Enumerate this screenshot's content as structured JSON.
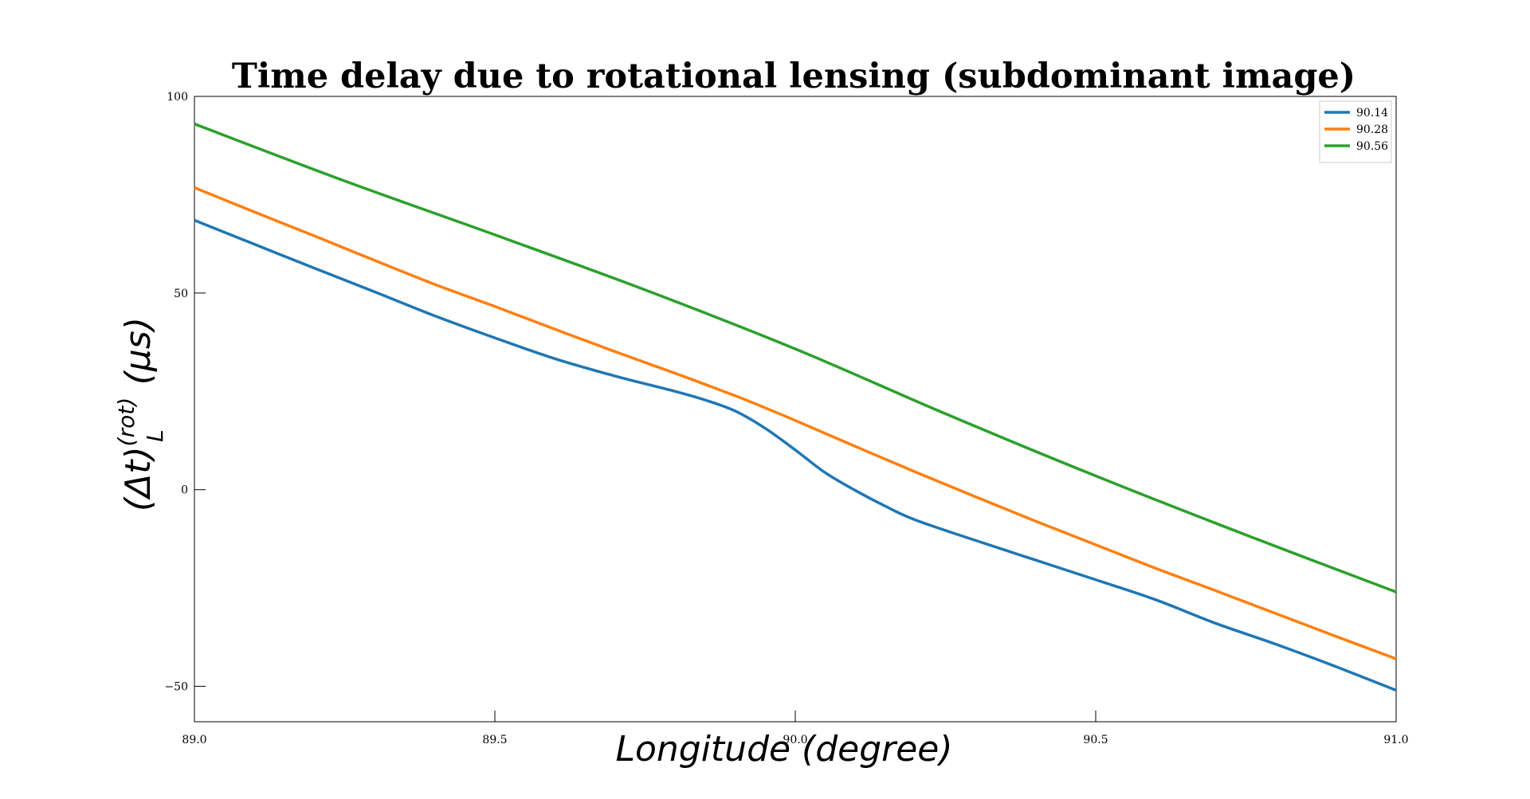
{
  "chart_data": {
    "type": "line",
    "title": "Time delay due to rotational lensing (subdominant image)",
    "xlabel": "Longitude   (degree)",
    "ylabel_main": "(Δt)",
    "ylabel_sup": "(rot)",
    "ylabel_sub": "L",
    "ylabel_unit": "(μs)",
    "xlim": [
      89.0,
      91.0
    ],
    "ylim": [
      -59,
      100
    ],
    "xticks": [
      89.0,
      89.5,
      90.0,
      90.5,
      91.0
    ],
    "xtick_labels": [
      "89.0",
      "89.5",
      "90.0",
      "90.5",
      "91.0"
    ],
    "yticks": [
      -50,
      0,
      50,
      100
    ],
    "ytick_labels": [
      "−50",
      "0",
      "50",
      "100"
    ],
    "legend_position": "top-right",
    "series": [
      {
        "name": "90.14",
        "color": "#1f77b4",
        "x": [
          89.0,
          89.1,
          89.2,
          89.3,
          89.4,
          89.5,
          89.6,
          89.7,
          89.8,
          89.85,
          89.9,
          89.95,
          90.0,
          90.05,
          90.1,
          90.15,
          90.2,
          90.3,
          90.4,
          90.5,
          90.6,
          90.7,
          90.8,
          90.9,
          91.0
        ],
        "values": [
          68.5,
          62.4,
          56.3,
          50.3,
          44.2,
          38.6,
          33.3,
          28.9,
          25.0,
          22.8,
          20.0,
          15.6,
          10.1,
          4.3,
          -0.2,
          -4.2,
          -7.7,
          -12.9,
          -17.9,
          -22.9,
          -28.0,
          -34.0,
          -39.3,
          -45.0,
          -51.0
        ]
      },
      {
        "name": "90.28",
        "color": "#ff7f0e",
        "x": [
          89.0,
          89.1,
          89.2,
          89.3,
          89.4,
          89.5,
          89.6,
          89.7,
          89.8,
          89.9,
          89.95,
          90.0,
          90.1,
          90.2,
          90.3,
          90.4,
          90.5,
          90.6,
          90.7,
          90.8,
          90.9,
          91.0
        ],
        "values": [
          76.8,
          70.6,
          64.5,
          58.3,
          52.2,
          46.6,
          40.8,
          35.1,
          29.6,
          23.9,
          20.8,
          17.6,
          11.0,
          4.5,
          -1.8,
          -8.0,
          -14.0,
          -20.0,
          -25.7,
          -31.5,
          -37.3,
          -43.0
        ]
      },
      {
        "name": "90.56",
        "color": "#2ca02c",
        "x": [
          89.0,
          89.25,
          89.5,
          89.75,
          90.0,
          90.25,
          90.5,
          90.75,
          91.0
        ],
        "values": [
          93.0,
          78.5,
          64.8,
          50.8,
          35.8,
          19.3,
          3.5,
          -11.5,
          -26.0
        ]
      }
    ]
  }
}
